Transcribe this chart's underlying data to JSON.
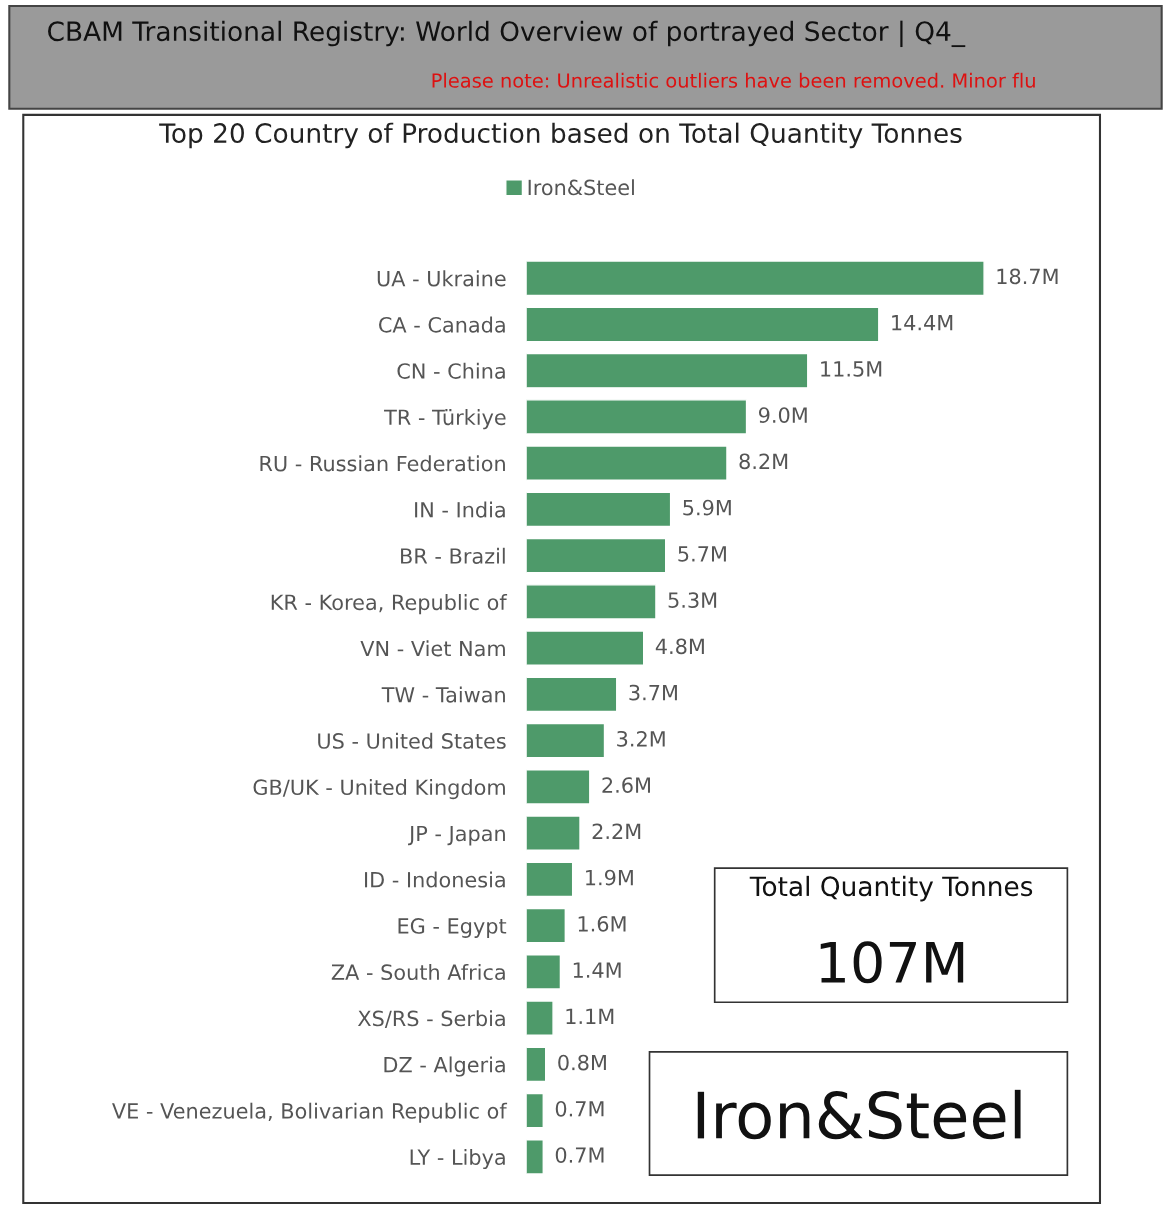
{
  "chart_data": {
    "type": "bar",
    "orientation": "horizontal",
    "title": "Top 20 Country of Production based on Total Quantity Tonnes",
    "annotations": [
      "CBAM Transitional Registry: World Overview of portrayed Sector | Q4_",
      "Please note: Unrealistic outliers have been removed. Minor flu",
      "Total Quantity Tonnes",
      "107M",
      "Iron&Steel"
    ],
    "categories": [
      "UA - Ukraine",
      "CA - Canada",
      "CN - China",
      "TR - Türkiye",
      "RU - Russian Federation",
      "IN - India",
      "BR - Brazil",
      "KR - Korea, Republic of",
      "VN - Viet Nam",
      "TW - Taiwan",
      "US - United States",
      "GB/UK - United Kingdom",
      "JP - Japan",
      "ID - Indonesia",
      "EG - Egypt",
      "ZA - South Africa",
      "XS/RS - Serbia",
      "DZ - Algeria",
      "VE - Venezuela, Bolivarian Republic of",
      "LY - Libya"
    ],
    "series": [
      {
        "name": "Iron&Steel",
        "color": "#4e9a6a",
        "values": [
          18.7,
          14.4,
          11.5,
          9.0,
          8.2,
          5.9,
          5.7,
          5.3,
          4.8,
          3.7,
          3.2,
          2.6,
          2.2,
          1.9,
          1.6,
          1.4,
          1.1,
          0.8,
          0.7,
          0.7
        ],
        "value_labels": [
          "18.7M",
          "14.4M",
          "11.5M",
          "9.0M",
          "8.2M",
          "5.9M",
          "5.7M",
          "5.3M",
          "4.8M",
          "3.7M",
          "3.2M",
          "2.6M",
          "2.2M",
          "1.9M",
          "1.6M",
          "1.4M",
          "1.1M",
          "0.8M",
          "0.7M",
          "0.7M"
        ]
      }
    ],
    "legend": "top",
    "grid": false
  }
}
